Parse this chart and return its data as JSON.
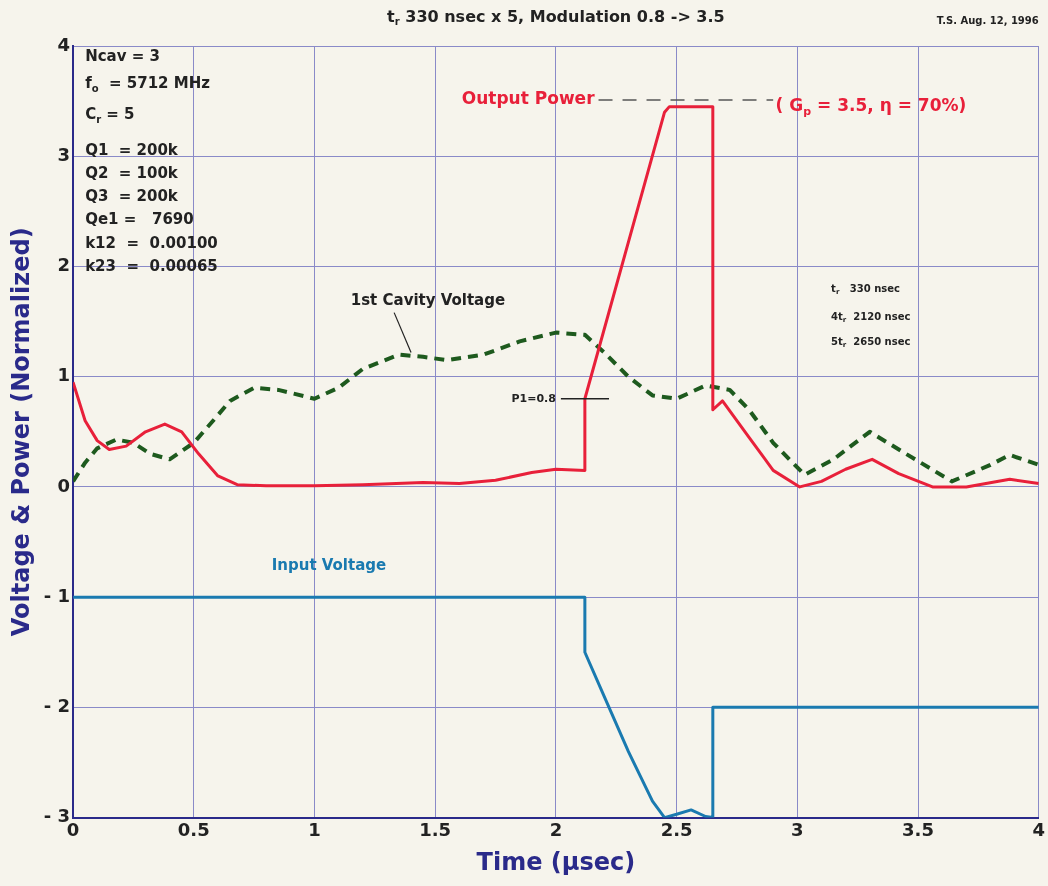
{
  "chart_data": {
    "type": "line",
    "title": "t$_{r}$ 330 nsec x 5, Modulation 0.8 -> 3.5",
    "xlabel": "Time (μsec)",
    "ylabel": "Voltage & Power (Normalized)",
    "annotations": [
      "T.S. Aug. 12, 1996",
      "Ncav = 3",
      "f$_{o}$  = 5712 MHz",
      "C$_{r}$ = 5",
      "Q1  = 200k",
      "Q2  = 100k",
      "Q3  = 200k",
      "Qe1 =   7690",
      "k12  =  0.00100",
      "k23  =  0.00065",
      "( G$_{p}$ = 3.5, η = 70%)",
      "P1=0.8",
      "t$_{r}$   330 nsec",
      "4t$_{r}$  2120 nsec",
      "5t$_{r}$  2650 nsec"
    ],
    "series": [
      {
        "name": "Output Power",
        "color": "#e8203a",
        "line_style": "solid",
        "x": [
          0,
          0.05,
          0.1,
          0.15,
          0.22,
          0.3,
          0.38,
          0.45,
          0.52,
          0.6,
          0.68,
          0.8,
          1.0,
          1.2,
          1.45,
          1.6,
          1.75,
          1.9,
          2.0,
          2.12,
          2.12,
          2.45,
          2.47,
          2.65,
          2.65,
          2.69,
          2.8,
          2.9,
          3.01,
          3.1,
          3.2,
          3.31,
          3.42,
          3.56,
          3.7,
          3.88,
          4.0
        ],
        "values": [
          0.95,
          0.6,
          0.42,
          0.34,
          0.37,
          0.5,
          0.57,
          0.5,
          0.3,
          0.1,
          0.02,
          0.01,
          0.01,
          0.02,
          0.04,
          0.03,
          0.06,
          0.13,
          0.16,
          0.15,
          0.8,
          3.4,
          3.45,
          3.45,
          0.7,
          0.78,
          0.45,
          0.15,
          0,
          0.05,
          0.16,
          0.25,
          0.12,
          0,
          0,
          0.07,
          0.03
        ]
      },
      {
        "name": "1st Cavity Voltage",
        "color": "#1e5a1e",
        "line_style": "dashed",
        "x": [
          0,
          0.05,
          0.1,
          0.18,
          0.25,
          0.32,
          0.4,
          0.5,
          0.58,
          0.65,
          0.75,
          0.85,
          1.0,
          1.1,
          1.2,
          1.35,
          1.45,
          1.55,
          1.7,
          1.85,
          2.0,
          2.12,
          2.2,
          2.3,
          2.4,
          2.5,
          2.62,
          2.72,
          2.8,
          2.9,
          3.03,
          3.15,
          3.3,
          3.45,
          3.64,
          3.8,
          3.88,
          4.0
        ],
        "values": [
          0.05,
          0.22,
          0.35,
          0.43,
          0.4,
          0.3,
          0.25,
          0.4,
          0.6,
          0.78,
          0.9,
          0.88,
          0.8,
          0.9,
          1.07,
          1.2,
          1.18,
          1.15,
          1.2,
          1.32,
          1.4,
          1.38,
          1.22,
          1.0,
          0.83,
          0.8,
          0.92,
          0.88,
          0.7,
          0.4,
          0.11,
          0.25,
          0.5,
          0.3,
          0.05,
          0.2,
          0.29,
          0.2
        ]
      },
      {
        "name": "Input Voltage",
        "color": "#1a7ab0",
        "line_style": "solid",
        "x": [
          0,
          2.12,
          2.12,
          2.2,
          2.3,
          2.4,
          2.45,
          2.5,
          2.56,
          2.62,
          2.65,
          2.65,
          4.0
        ],
        "values": [
          -1,
          -1,
          -1.5,
          -1.9,
          -2.4,
          -2.85,
          -3,
          -2.97,
          -2.93,
          -2.99,
          -3,
          -2,
          -2
        ]
      }
    ],
    "xlim": [
      0,
      4
    ],
    "xticks": [
      0,
      0.5,
      1,
      1.5,
      2,
      2.5,
      3,
      3.5,
      4
    ],
    "ylim": [
      -3,
      4
    ],
    "yticks": [
      {
        "value": -3,
        "label": "- 3"
      },
      {
        "value": -2,
        "label": "- 2"
      },
      {
        "value": -1,
        "label": "- 1"
      },
      0,
      1,
      2,
      3,
      4
    ],
    "grid": true,
    "legend": false,
    "marker": "none"
  }
}
